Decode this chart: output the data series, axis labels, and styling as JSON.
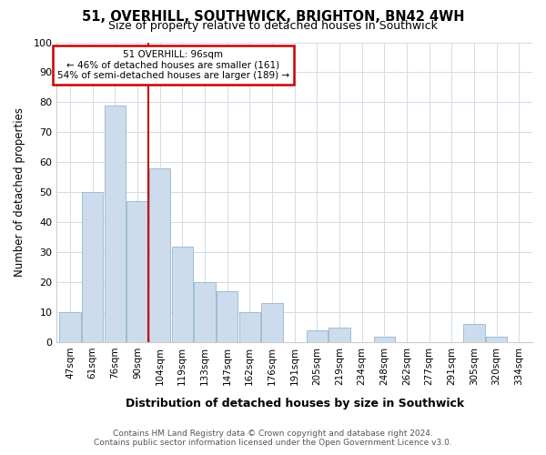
{
  "title1": "51, OVERHILL, SOUTHWICK, BRIGHTON, BN42 4WH",
  "title2": "Size of property relative to detached houses in Southwick",
  "xlabel": "Distribution of detached houses by size in Southwick",
  "ylabel": "Number of detached properties",
  "bin_labels": [
    "47sqm",
    "61sqm",
    "76sqm",
    "90sqm",
    "104sqm",
    "119sqm",
    "133sqm",
    "147sqm",
    "162sqm",
    "176sqm",
    "191sqm",
    "205sqm",
    "219sqm",
    "234sqm",
    "248sqm",
    "262sqm",
    "277sqm",
    "291sqm",
    "305sqm",
    "320sqm",
    "334sqm"
  ],
  "bar_heights": [
    10,
    50,
    79,
    47,
    58,
    32,
    20,
    17,
    10,
    13,
    0,
    4,
    5,
    0,
    2,
    0,
    0,
    0,
    6,
    2,
    0
  ],
  "bar_color": "#ccdcec",
  "bar_edge_color": "#a0bcd4",
  "property_label": "51 OVERHILL: 96sqm",
  "annotation_line1": "← 46% of detached houses are smaller (161)",
  "annotation_line2": "54% of semi-detached houses are larger (189) →",
  "annotation_box_color": "#ffffff",
  "annotation_border_color": "#cc0000",
  "red_line_color": "#cc0000",
  "red_line_x": 3.5,
  "ylim": [
    0,
    100
  ],
  "yticks": [
    0,
    10,
    20,
    30,
    40,
    50,
    60,
    70,
    80,
    90,
    100
  ],
  "footer1": "Contains HM Land Registry data © Crown copyright and database right 2024.",
  "footer2": "Contains public sector information licensed under the Open Government Licence v3.0.",
  "bg_color": "#ffffff",
  "plot_bg_color": "#ffffff",
  "grid_color": "#d0dce8"
}
